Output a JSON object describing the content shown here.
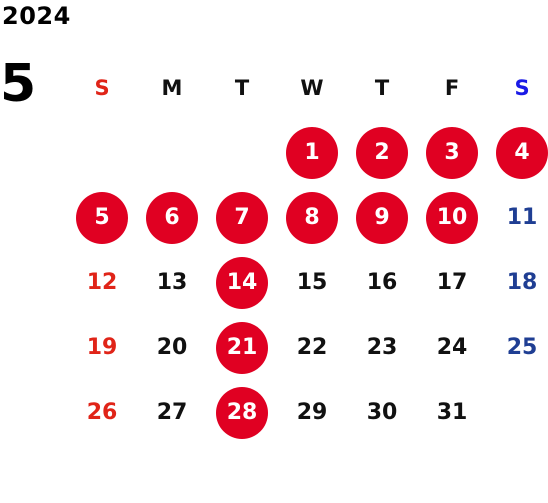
{
  "year": "2024",
  "month": "5",
  "weekdays": [
    "S",
    "M",
    "T",
    "W",
    "T",
    "F",
    "S"
  ],
  "leading_blanks": 3,
  "days": [
    {
      "n": "1",
      "holiday": true
    },
    {
      "n": "2",
      "holiday": true
    },
    {
      "n": "3",
      "holiday": true
    },
    {
      "n": "4",
      "holiday": true
    },
    {
      "n": "5",
      "holiday": true
    },
    {
      "n": "6",
      "holiday": true
    },
    {
      "n": "7",
      "holiday": true
    },
    {
      "n": "8",
      "holiday": true
    },
    {
      "n": "9",
      "holiday": true
    },
    {
      "n": "10",
      "holiday": true
    },
    {
      "n": "11",
      "holiday": false
    },
    {
      "n": "12",
      "holiday": false
    },
    {
      "n": "13",
      "holiday": false
    },
    {
      "n": "14",
      "holiday": true
    },
    {
      "n": "15",
      "holiday": false
    },
    {
      "n": "16",
      "holiday": false
    },
    {
      "n": "17",
      "holiday": false
    },
    {
      "n": "18",
      "holiday": false
    },
    {
      "n": "19",
      "holiday": false
    },
    {
      "n": "20",
      "holiday": false
    },
    {
      "n": "21",
      "holiday": true
    },
    {
      "n": "22",
      "holiday": false
    },
    {
      "n": "23",
      "holiday": false
    },
    {
      "n": "24",
      "holiday": false
    },
    {
      "n": "25",
      "holiday": false
    },
    {
      "n": "26",
      "holiday": false
    },
    {
      "n": "27",
      "holiday": false
    },
    {
      "n": "28",
      "holiday": true
    },
    {
      "n": "29",
      "holiday": false
    },
    {
      "n": "30",
      "holiday": false
    },
    {
      "n": "31",
      "holiday": false
    }
  ],
  "colors": {
    "holiday_circle": "#e00022",
    "sunday": "#e02418",
    "saturday": "#1f3e93",
    "saturday_header": "#1a1ae6",
    "weekday": "#111111"
  }
}
